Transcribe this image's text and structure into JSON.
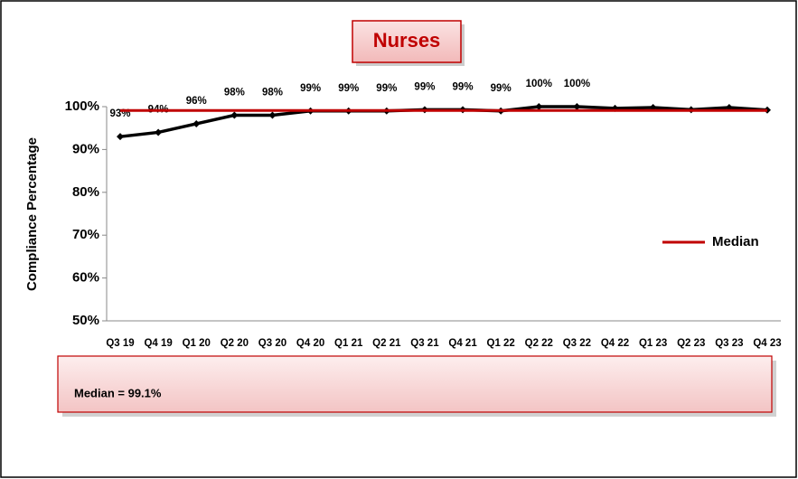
{
  "chart_data": {
    "type": "line",
    "title": "Nurses",
    "ylabel": "Compliance Percentage",
    "annotations": [
      "Median = 99.1%"
    ],
    "categories": [
      "Q3 19",
      "Q4 19",
      "Q1 20",
      "Q2 20",
      "Q3 20",
      "Q4 20",
      "Q1 21",
      "Q2 21",
      "Q3 21",
      "Q4 21",
      "Q1 22",
      "Q2 22",
      "Q3 22",
      "Q4 22",
      "Q1 23",
      "Q2 23",
      "Q3 23",
      "Q4 23"
    ],
    "series": [
      {
        "color": "#000000",
        "values": [
          93,
          94,
          96,
          98,
          98,
          99,
          99,
          99,
          99.3,
          99.3,
          99,
          100,
          100,
          99.6,
          99.8,
          99.3,
          99.8,
          99.2
        ],
        "value_labels": [
          "93%",
          "94%",
          "96%",
          "98%",
          "98%",
          "99%",
          "99%",
          "99%",
          "99%",
          "99%",
          "99%",
          "100%",
          "100%",
          null,
          null,
          null,
          null,
          null
        ]
      },
      {
        "name": "Median",
        "color": "#c00000",
        "values": [
          99.1,
          99.1,
          99.1,
          99.1,
          99.1,
          99.1,
          99.1,
          99.1,
          99.1,
          99.1,
          99.1,
          99.1,
          99.1,
          99.1,
          99.1,
          99.1,
          99.1,
          99.1
        ]
      }
    ],
    "ylim": [
      50,
      100
    ],
    "yticks": [
      {
        "value": 50,
        "label": "50%"
      },
      {
        "value": 60,
        "label": "60%"
      },
      {
        "value": 70,
        "label": "70%"
      },
      {
        "value": 80,
        "label": "80%"
      },
      {
        "value": 90,
        "label": "90%"
      },
      {
        "value": 100,
        "label": "100%"
      }
    ],
    "legend": "right"
  }
}
